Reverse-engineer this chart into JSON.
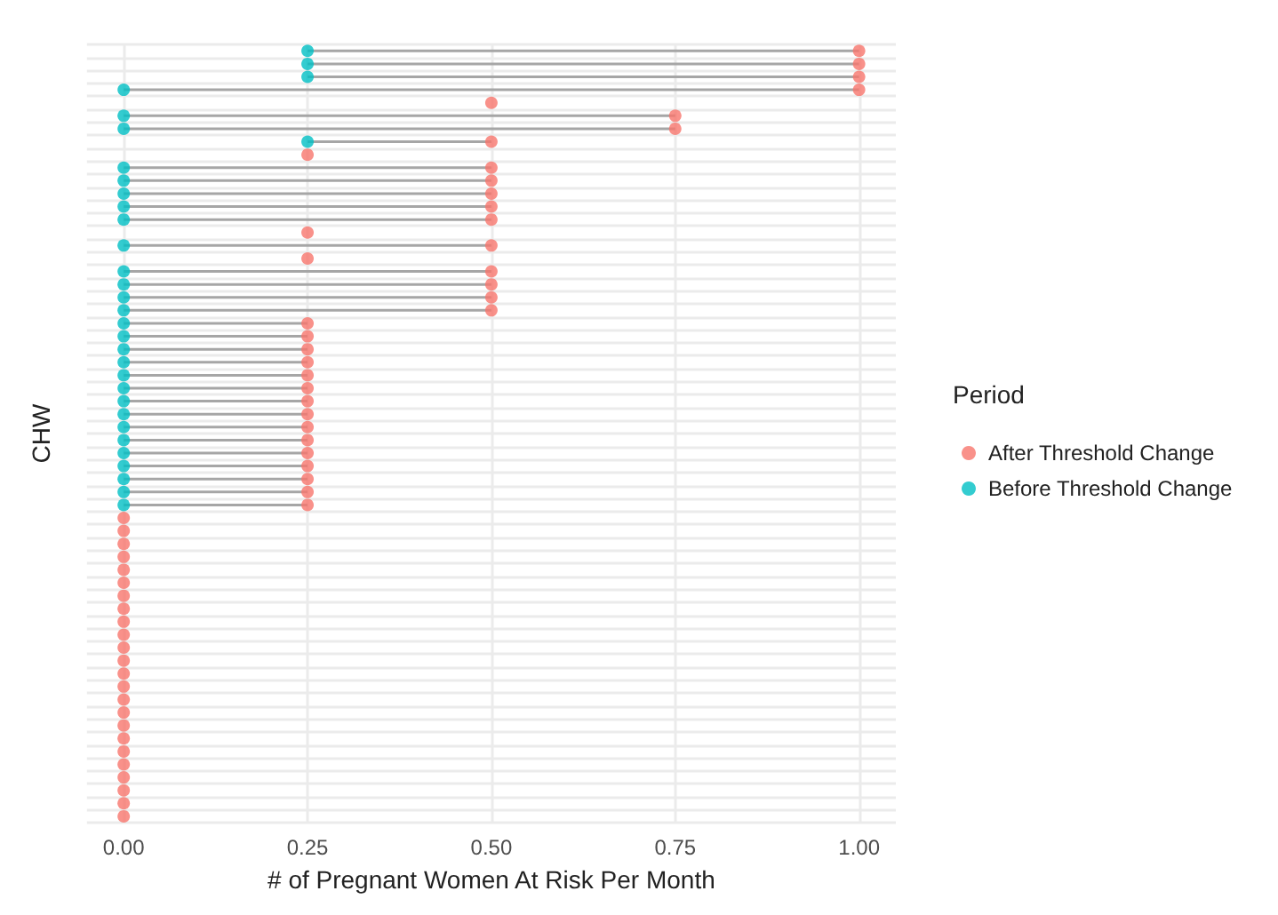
{
  "chart_data": {
    "type": "scatter",
    "orientation": "horizontal",
    "xlabel": "# of Pregnant Women At Risk Per Month",
    "ylabel": "CHW",
    "legend_title": "Period",
    "legend": "right",
    "grid": true,
    "marker": "circle",
    "categories": [
      null,
      null,
      null,
      null,
      null,
      null,
      null,
      null,
      null,
      null,
      null,
      null,
      null,
      null,
      null,
      null,
      null,
      null,
      null,
      null,
      null,
      null,
      null,
      null,
      null,
      null,
      null,
      null,
      null,
      null,
      null,
      null,
      null,
      null,
      null,
      null,
      null,
      null,
      null,
      null,
      null,
      null,
      null,
      null,
      null,
      null,
      null,
      null,
      null,
      null,
      null,
      null,
      null,
      null,
      null,
      null,
      null,
      null,
      null,
      null
    ],
    "xlim": [
      -0.05,
      1.05
    ],
    "xticks": [
      {
        "value": 0,
        "label": "0.00"
      },
      {
        "value": 0.25,
        "label": "0.25"
      },
      {
        "value": 0.5,
        "label": "0.50"
      },
      {
        "value": 0.75,
        "label": "0.75"
      },
      {
        "value": 1,
        "label": "1.00"
      }
    ],
    "series": [
      {
        "name": "After Threshold Change",
        "color": "#f8766d",
        "values": [
          1,
          1,
          1,
          1,
          0.5,
          0.75,
          0.75,
          0.5,
          0.25,
          0.5,
          0.5,
          0.5,
          0.5,
          0.5,
          0.25,
          0.5,
          0.25,
          0.5,
          0.5,
          0.5,
          0.5,
          0.25,
          0.25,
          0.25,
          0.25,
          0.25,
          0.25,
          0.25,
          0.25,
          0.25,
          0.25,
          0.25,
          0.25,
          0.25,
          0.25,
          0.25,
          0,
          0,
          0,
          0,
          0,
          0,
          0,
          0,
          0,
          0,
          0,
          0,
          0,
          0,
          0,
          0,
          0,
          0,
          0,
          0,
          0,
          0,
          0,
          0
        ]
      },
      {
        "name": "Before Threshold Change",
        "color": "#00bfc4",
        "values": [
          0.25,
          0.25,
          0.25,
          0,
          null,
          0,
          0,
          0.25,
          null,
          0,
          0,
          0,
          0,
          0,
          null,
          0,
          null,
          0,
          0,
          0,
          0,
          0,
          0,
          0,
          0,
          0,
          0,
          0,
          0,
          0,
          0,
          0,
          0,
          0,
          0,
          0,
          null,
          null,
          null,
          null,
          null,
          null,
          null,
          null,
          null,
          null,
          null,
          null,
          null,
          null,
          null,
          null,
          null,
          null,
          null,
          null,
          null,
          null,
          null,
          null
        ]
      }
    ]
  }
}
